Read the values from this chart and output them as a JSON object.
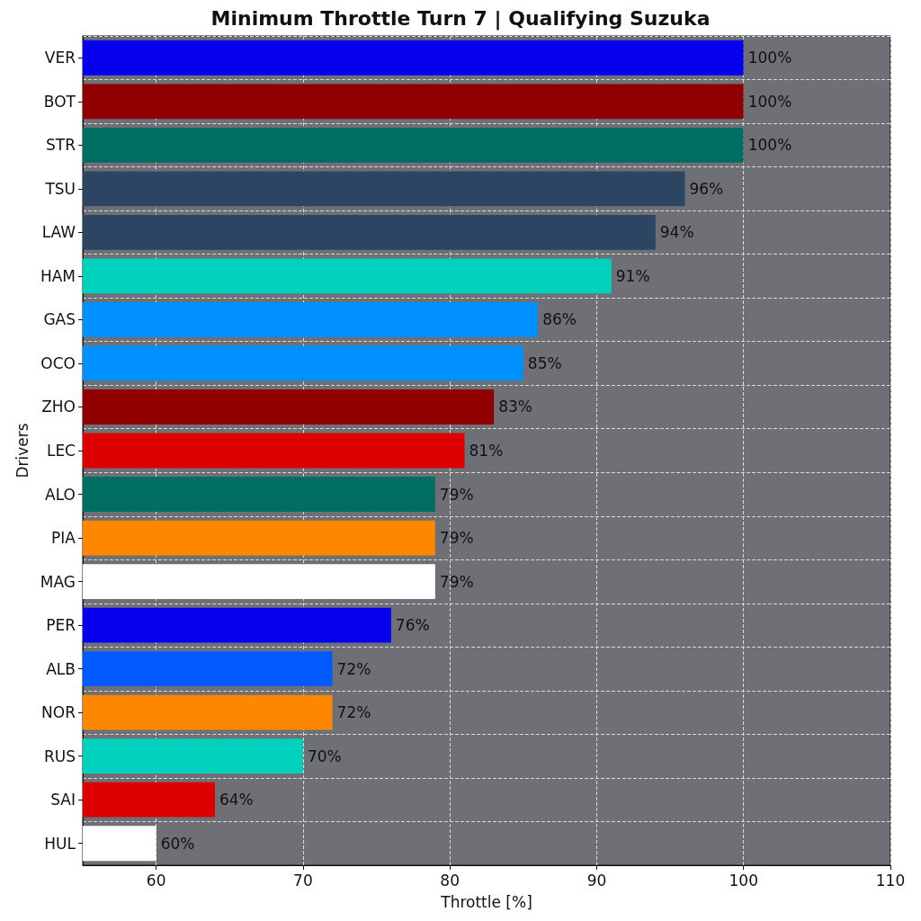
{
  "chart_data": {
    "type": "bar",
    "orientation": "horizontal",
    "title": "Minimum Throttle Turn 7 | Qualifying Suzuka",
    "xlabel": "Throttle [%]",
    "ylabel": "Drivers",
    "categories": [
      "VER",
      "BOT",
      "STR",
      "TSU",
      "LAW",
      "HAM",
      "GAS",
      "OCO",
      "ZHO",
      "LEC",
      "ALO",
      "PIA",
      "MAG",
      "PER",
      "ALB",
      "NOR",
      "RUS",
      "SAI",
      "HUL"
    ],
    "values": [
      100,
      100,
      100,
      96,
      94,
      91,
      86,
      85,
      83,
      81,
      79,
      79,
      79,
      76,
      72,
      72,
      70,
      64,
      60
    ],
    "value_labels": [
      "100%",
      "100%",
      "100%",
      "96%",
      "94%",
      "91%",
      "86%",
      "85%",
      "83%",
      "81%",
      "79%",
      "79%",
      "79%",
      "76%",
      "72%",
      "72%",
      "70%",
      "64%",
      "60%"
    ],
    "colors": [
      "#0600ef",
      "#900000",
      "#006f62",
      "#2b4562",
      "#2b4562",
      "#00d2be",
      "#0090ff",
      "#0090ff",
      "#900000",
      "#dc0000",
      "#006f62",
      "#ff8700",
      "#ffffff",
      "#0600ef",
      "#005aff",
      "#ff8700",
      "#00d2be",
      "#dc0000",
      "#ffffff"
    ],
    "xlim": [
      55,
      110
    ],
    "xticks": [
      60,
      70,
      80,
      90,
      100,
      110
    ],
    "grid": true,
    "line_style": "dashed"
  }
}
